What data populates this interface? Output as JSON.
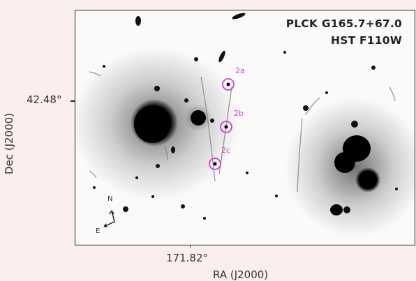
{
  "title": {
    "cluster": "PLCK G165.7+67.0",
    "filter": "HST F110W"
  },
  "axes": {
    "xlabel": "RA (J2000)",
    "ylabel": "Dec (J2000)",
    "ra_tick": "171.82°",
    "dec_tick": "42.48°"
  },
  "image_labels": [
    "2a",
    "2b",
    "2c"
  ],
  "compass": {
    "north": "N",
    "east": "E"
  },
  "colors": {
    "marker": "#d13cd1",
    "background": "#fafafa",
    "page": "#fbeeee"
  }
}
